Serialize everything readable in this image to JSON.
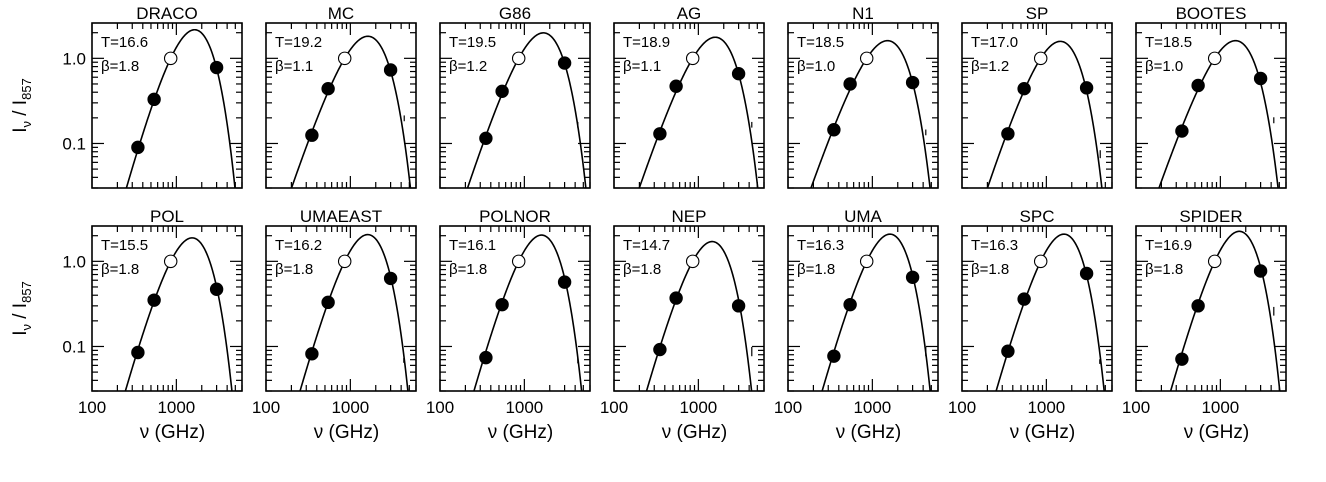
{
  "chart_data": {
    "type": "scatter",
    "layout": {
      "rows": 2,
      "cols": 7
    },
    "xscale": "log",
    "yscale": "log",
    "xlim": [
      100,
      6000
    ],
    "ylim": [
      0.03,
      2.6
    ],
    "xticks": [
      100,
      1000
    ],
    "xticklabels": [
      "100",
      "1000"
    ],
    "yticks": [
      0.1,
      1.0
    ],
    "yticklabels": [
      "0.1",
      "1.0"
    ],
    "xlabel": {
      "pre": "ν (GHz)"
    },
    "ylabel": {
      "main": "I",
      "sub1": "ν",
      "mid": " / I",
      "sub2": "857"
    },
    "open_point": [
      857,
      1.0
    ],
    "panels": [
      {
        "name": "DRACO",
        "T": "T=16.6",
        "beta": "β=1.8",
        "Tval": 16.6,
        "bval": 1.8,
        "points": [
          [
            350,
            0.09
          ],
          [
            545,
            0.33
          ],
          [
            3000,
            0.78
          ]
        ],
        "bar": [
          4300,
          0.105,
          0.105
        ]
      },
      {
        "name": "MC",
        "T": "T=19.2",
        "beta": "β=1.1",
        "Tval": 19.2,
        "bval": 1.1,
        "points": [
          [
            350,
            0.125
          ],
          [
            545,
            0.44
          ],
          [
            3000,
            0.73
          ]
        ],
        "bar": [
          4350,
          0.19,
          0.205
        ]
      },
      {
        "name": "G86",
        "T": "T=19.5",
        "beta": "β=1.2",
        "Tval": 19.5,
        "bval": 1.2,
        "points": [
          [
            350,
            0.115
          ],
          [
            545,
            0.41
          ],
          [
            3000,
            0.88
          ]
        ],
        "bar": [
          4300,
          0.16,
          0.172
        ]
      },
      {
        "name": "AG",
        "T": "T=18.9",
        "beta": "β=1.1",
        "Tval": 18.9,
        "bval": 1.1,
        "points": [
          [
            350,
            0.13
          ],
          [
            545,
            0.47
          ],
          [
            3000,
            0.66
          ]
        ],
        "bar": [
          4300,
          0.16,
          0.172
        ]
      },
      {
        "name": "N1",
        "T": "T=18.5",
        "beta": "β=1.0",
        "Tval": 18.5,
        "bval": 1.0,
        "points": [
          [
            350,
            0.145
          ],
          [
            545,
            0.5
          ],
          [
            3000,
            0.52
          ]
        ],
        "bar": [
          4300,
          0.13,
          0.14
        ]
      },
      {
        "name": "SP",
        "T": "T=17.0",
        "beta": "β=1.2",
        "Tval": 17.0,
        "bval": 1.2,
        "points": [
          [
            350,
            0.13
          ],
          [
            545,
            0.44
          ],
          [
            3000,
            0.45
          ]
        ],
        "bar": [
          4350,
          0.07,
          0.08
        ]
      },
      {
        "name": "BOOTES",
        "T": "T=18.5",
        "beta": "β=1.0",
        "Tval": 18.5,
        "bval": 1.0,
        "points": [
          [
            350,
            0.14
          ],
          [
            545,
            0.48
          ],
          [
            3000,
            0.58
          ]
        ],
        "bar": [
          4300,
          0.18,
          0.195
        ]
      },
      {
        "name": "POL",
        "T": "T=15.5",
        "beta": "β=1.8",
        "Tval": 15.5,
        "bval": 1.8,
        "points": [
          [
            350,
            0.085
          ],
          [
            545,
            0.35
          ],
          [
            3000,
            0.47
          ]
        ],
        "bar": [
          4300,
          0.052,
          0.052
        ]
      },
      {
        "name": "UMAEAST",
        "T": "T=16.2",
        "beta": "β=1.8",
        "Tval": 16.2,
        "bval": 1.8,
        "points": [
          [
            350,
            0.082
          ],
          [
            545,
            0.33
          ],
          [
            3000,
            0.63
          ]
        ],
        "bar": [
          4300,
          0.067,
          0.07
        ]
      },
      {
        "name": "POLNOR",
        "T": "T=16.1",
        "beta": "β=1.8",
        "Tval": 16.1,
        "bval": 1.8,
        "points": [
          [
            350,
            0.074
          ],
          [
            545,
            0.31
          ],
          [
            3000,
            0.57
          ]
        ],
        "bar": [
          4300,
          0.066,
          0.07
        ]
      },
      {
        "name": "NEP",
        "T": "T=14.7",
        "beta": "β=1.8",
        "Tval": 14.7,
        "bval": 1.8,
        "points": [
          [
            350,
            0.092
          ],
          [
            545,
            0.37
          ],
          [
            3000,
            0.3
          ]
        ],
        "bar": [
          4300,
          0.08,
          0.095
        ]
      },
      {
        "name": "UMA",
        "T": "T=16.3",
        "beta": "β=1.8",
        "Tval": 16.3,
        "bval": 1.8,
        "points": [
          [
            350,
            0.077
          ],
          [
            545,
            0.31
          ],
          [
            3000,
            0.65
          ]
        ],
        "bar": [
          4300,
          0.08,
          0.095
        ]
      },
      {
        "name": "SPC",
        "T": "T=16.3",
        "beta": "β=1.8",
        "Tval": 16.3,
        "bval": 1.8,
        "points": [
          [
            350,
            0.088
          ],
          [
            545,
            0.36
          ],
          [
            3000,
            0.72
          ]
        ],
        "bar": [
          4300,
          0.065,
          0.068
        ]
      },
      {
        "name": "SPIDER",
        "T": "T=16.9",
        "beta": "β=1.8",
        "Tval": 16.9,
        "bval": 1.8,
        "points": [
          [
            350,
            0.071
          ],
          [
            545,
            0.3
          ],
          [
            3000,
            0.77
          ]
        ],
        "bar": [
          4300,
          0.24,
          0.28
        ]
      }
    ]
  }
}
